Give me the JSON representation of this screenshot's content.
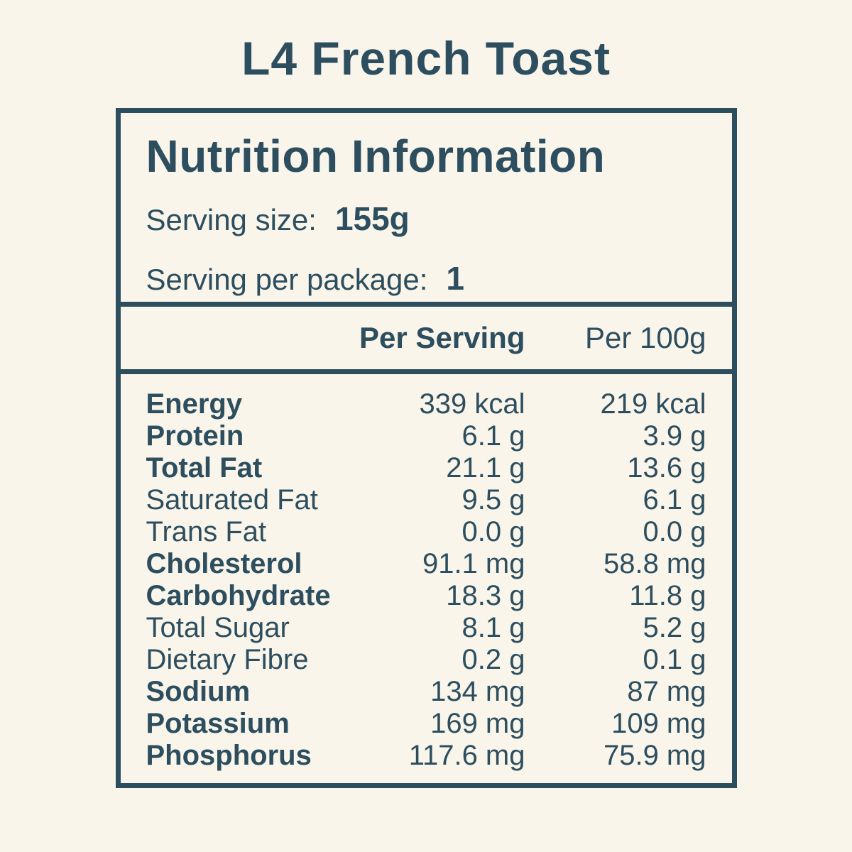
{
  "title": "L4 French Toast",
  "colors": {
    "background": "#f9f5eb",
    "ink": "#2d4e5e"
  },
  "label": {
    "heading": "Nutrition Information",
    "serving_size": {
      "label": "Serving size:",
      "value": "155g"
    },
    "serving_per_package": {
      "label": "Serving per package:",
      "value": "1"
    },
    "columns": {
      "per_serving": "Per Serving",
      "per_100g": "Per 100g"
    },
    "rows": [
      {
        "name": "Energy",
        "emphasis": true,
        "per_serving": "339 kcal",
        "per_100g": "219 kcal"
      },
      {
        "name": "Protein",
        "emphasis": true,
        "per_serving": "6.1 g",
        "per_100g": "3.9 g"
      },
      {
        "name": "Total Fat",
        "emphasis": true,
        "per_serving": "21.1 g",
        "per_100g": "13.6 g"
      },
      {
        "name": "Saturated Fat",
        "emphasis": false,
        "per_serving": "9.5 g",
        "per_100g": "6.1 g"
      },
      {
        "name": "Trans Fat",
        "emphasis": false,
        "per_serving": "0.0 g",
        "per_100g": "0.0 g"
      },
      {
        "name": "Cholesterol",
        "emphasis": true,
        "per_serving": "91.1 mg",
        "per_100g": "58.8 mg"
      },
      {
        "name": "Carbohydrate",
        "emphasis": true,
        "per_serving": "18.3 g",
        "per_100g": "11.8 g"
      },
      {
        "name": "Total Sugar",
        "emphasis": false,
        "per_serving": "8.1 g",
        "per_100g": "5.2 g"
      },
      {
        "name": "Dietary Fibre",
        "emphasis": false,
        "per_serving": "0.2 g",
        "per_100g": "0.1 g"
      },
      {
        "name": "Sodium",
        "emphasis": true,
        "per_serving": "134 mg",
        "per_100g": "87 mg"
      },
      {
        "name": "Potassium",
        "emphasis": true,
        "per_serving": "169 mg",
        "per_100g": "109 mg"
      },
      {
        "name": "Phosphorus",
        "emphasis": true,
        "per_serving": "117.6 mg",
        "per_100g": "75.9 mg"
      }
    ]
  }
}
